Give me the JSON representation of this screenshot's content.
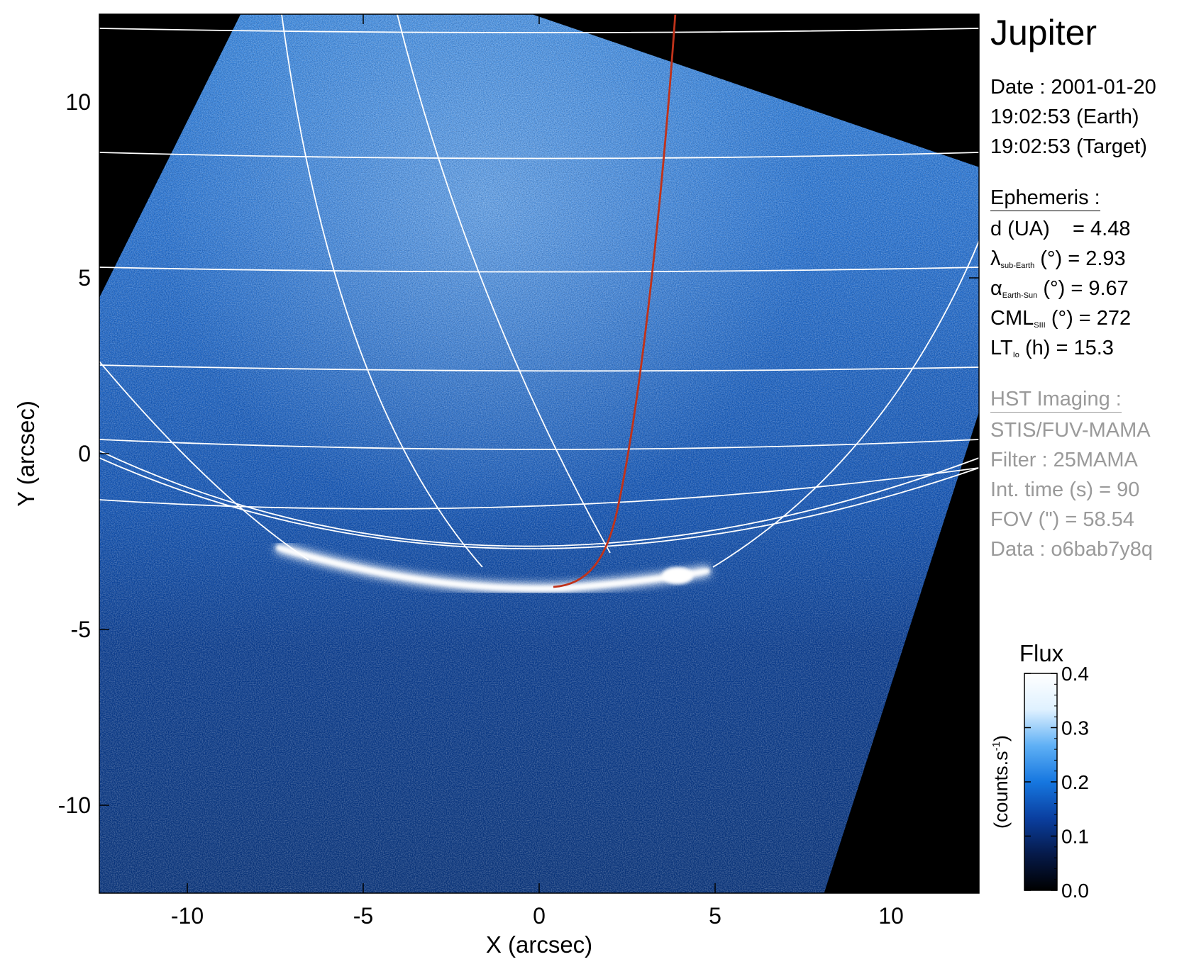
{
  "chart_data": {
    "type": "heatmap",
    "title": "Jupiter",
    "xlabel": "X (arcsec)",
    "ylabel": "Y (arcsec)",
    "xlim": [
      -12.5,
      12.5
    ],
    "ylim": [
      -12.5,
      12.5
    ],
    "x_ticks": [
      "-10",
      "-5",
      "0",
      "5",
      "10"
    ],
    "y_ticks": [
      "10",
      "5",
      "0",
      "-5",
      "-10"
    ],
    "colorbar": {
      "title": "Flux",
      "unit_label": "(counts.s",
      "unit_exp": "-1",
      "unit_close": ")",
      "range": [
        0.0,
        0.4
      ],
      "ticks": [
        "0.0",
        "0.1",
        "0.2",
        "0.3",
        "0.4"
      ]
    },
    "colormap": [
      "#000000",
      "#061a4a",
      "#0a3fa0",
      "#1677e0",
      "#5fb0f5",
      "#dff1ff",
      "#ffffff"
    ],
    "overlay_colors": {
      "grid": "#ffffff",
      "footpath": "#c0321a"
    },
    "overlays": [
      "planetographic grid",
      "auroral oval",
      "Io footpath"
    ]
  },
  "info": {
    "target": "Jupiter",
    "date_line": "Date : 2001-01-20",
    "time_earth": "19:02:53 (Earth)",
    "time_target": "19:02:53 (Target)",
    "ephemeris_header": "Ephemeris :",
    "distance": {
      "label": "d (UA)",
      "value": "= 4.48"
    },
    "sub_earth": {
      "sym": "λ",
      "sub": "sub-Earth",
      "rest": "(°) = 2.93"
    },
    "phase": {
      "sym": "α",
      "sub": "Earth-Sun",
      "rest": "(°) = 9.67"
    },
    "cml": {
      "sym": "CML",
      "sub": "SIII",
      "rest": "(°) = 272"
    },
    "lt": {
      "sym": "LT",
      "sub": "Io",
      "rest": "(h) = 15.3"
    },
    "imaging_header": "HST Imaging :",
    "instrument": "STIS/FUV-MAMA",
    "filter": "Filter : 25MAMA",
    "int_time": "Int. time (s) = 90",
    "fov": "FOV (\") = 58.54",
    "data_id": "Data : o6bab7y8q"
  }
}
